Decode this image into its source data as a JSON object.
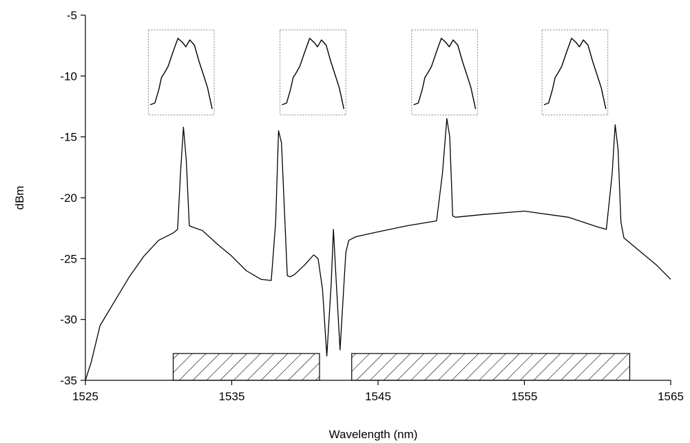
{
  "chart_data": {
    "type": "line",
    "title": "",
    "xlabel": "Wavelength (nm)",
    "ylabel": "dBm",
    "xlim": [
      1525,
      1565
    ],
    "ylim": [
      -35,
      -5
    ],
    "xticks": [
      "1525",
      "1535",
      "1545",
      "1555",
      "1565"
    ],
    "yticks": [
      "-5",
      "-10",
      "-15",
      "-20",
      "-25",
      "-30",
      "-35"
    ],
    "grid": false,
    "series": [
      {
        "x": [
          1525,
          1525.4,
          1526,
          1527,
          1528,
          1529,
          1530,
          1531,
          1531.3,
          1531.5,
          1531.7,
          1531.9,
          1532.1,
          1532.3,
          1533,
          1534,
          1535,
          1536,
          1537,
          1537.7,
          1538.0,
          1538.2,
          1538.4,
          1538.6,
          1538.8,
          1539.0,
          1539.3,
          1540,
          1540.6,
          1540.9,
          1541.2,
          1541.5,
          1541.8,
          1541.95,
          1542.1,
          1542.4,
          1542.6,
          1542.8,
          1543.0,
          1543.5,
          1545,
          1547,
          1549,
          1549.4,
          1549.7,
          1549.9,
          1550.1,
          1550.3,
          1552,
          1555,
          1558,
          1560,
          1560.6,
          1561.0,
          1561.2,
          1561.4,
          1561.6,
          1561.8,
          1562.5,
          1564,
          1565
        ],
        "y": [
          -35,
          -33.5,
          -30.5,
          -28.5,
          -26.5,
          -24.8,
          -23.5,
          -22.9,
          -22.6,
          -18,
          -14.2,
          -17,
          -22.3,
          -22.4,
          -22.7,
          -23.8,
          -24.8,
          -26,
          -26.7,
          -26.8,
          -22,
          -14.5,
          -15.5,
          -21,
          -26.4,
          -26.5,
          -26.3,
          -25.5,
          -24.7,
          -25,
          -27.5,
          -33,
          -27,
          -22.6,
          -26,
          -32.5,
          -28.5,
          -24.5,
          -23.5,
          -23.2,
          -22.8,
          -22.3,
          -21.9,
          -18,
          -13.5,
          -15,
          -21.5,
          -21.6,
          -21.4,
          -21.1,
          -21.6,
          -22.4,
          -22.6,
          -18,
          -14,
          -16,
          -22,
          -23.3,
          -24,
          -25.5,
          -26.7
        ]
      }
    ],
    "hatched_bars": [
      {
        "x_start": 1531,
        "x_end": 1541,
        "y_top": -32.8
      },
      {
        "x_start": 1543.2,
        "x_end": 1562.2,
        "y_top": -32.8
      }
    ],
    "insets": [
      {
        "x_start": 1529.3,
        "x_end": 1533.8,
        "y_top": -6.2,
        "y_bottom": -13.2
      },
      {
        "x_start": 1538.3,
        "x_end": 1542.8,
        "y_top": -6.2,
        "y_bottom": -13.2
      },
      {
        "x_start": 1547.3,
        "x_end": 1551.8,
        "y_top": -6.2,
        "y_bottom": -13.2
      },
      {
        "x_start": 1556.2,
        "x_end": 1560.7,
        "y_top": -6.2,
        "y_bottom": -13.2
      }
    ],
    "colors": {
      "line": "#000000",
      "inset_border": "#808080",
      "hatch": "#000000"
    }
  }
}
